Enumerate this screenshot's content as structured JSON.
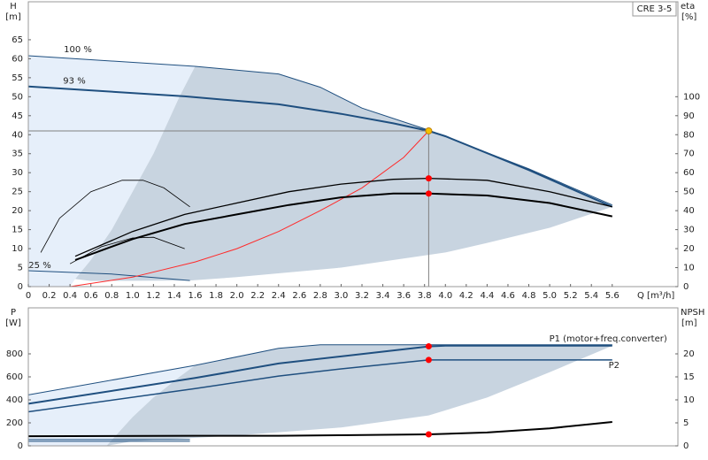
{
  "chart_data": [
    {
      "type": "line",
      "title": "CRE 3-5",
      "xlabel": "Q [m³/h]",
      "ylabel": "H",
      "yunit": "[m]",
      "y2label": "eta",
      "y2unit": "[%]",
      "xlim": [
        0,
        6.23
      ],
      "ylim": [
        0,
        75
      ],
      "y2lim": [
        0,
        150
      ],
      "xticks": [
        0,
        0.2,
        0.4,
        0.6,
        0.8,
        {
          "value": 1,
          "label": "1.0"
        },
        1.2,
        1.4,
        1.6,
        1.8,
        {
          "value": 2,
          "label": "2.0"
        },
        2.2,
        2.4,
        2.6,
        2.8,
        {
          "value": 3,
          "label": "3.0"
        },
        3.2,
        3.4,
        3.6,
        3.8,
        {
          "value": 4,
          "label": "4.0"
        },
        4.2,
        4.4,
        4.6,
        4.8,
        {
          "value": 5,
          "label": "5.0"
        },
        5.2,
        5.4,
        5.6
      ],
      "yticks": [
        0,
        5,
        10,
        15,
        20,
        25,
        30,
        35,
        40,
        45,
        50,
        55,
        60,
        65
      ],
      "y2ticks": [
        0,
        10,
        20,
        30,
        40,
        50,
        60,
        70,
        80,
        90,
        100
      ],
      "grid": false,
      "series": [
        {
          "mark": "area",
          "color": "#e6effa",
          "x": [
            0,
            0,
            1.6,
            1.45,
            1.2,
            1.0,
            0.8,
            0.6,
            0.45,
            0.4
          ],
          "values": [
            0,
            60.8,
            58,
            50,
            35,
            25,
            15,
            7,
            2,
            0
          ]
        },
        {
          "mark": "area",
          "color": "#c8d4e0",
          "x": [
            1.6,
            2.4,
            2.8,
            3.2,
            3.84,
            4.8,
            5.6,
            5.6,
            5.0,
            4.4,
            4.0,
            3.0,
            2.0,
            1.55,
            0.6,
            0.45,
            0.6,
            0.8,
            1.0,
            1.2,
            1.45
          ],
          "values": [
            58,
            56,
            52.5,
            47,
            41.2,
            31,
            21.5,
            21,
            15.5,
            11.5,
            9,
            5,
            2.5,
            1.6,
            1.5,
            2,
            7,
            15,
            25,
            35,
            50
          ]
        },
        {
          "mark": "line",
          "name": "100 %",
          "color": "#1f4f7f",
          "width": 1,
          "x": [
            0,
            1.6,
            2.4,
            2.8,
            3.2,
            3.84,
            4.8,
            5.6
          ],
          "values": [
            60.8,
            58,
            56,
            52.5,
            47,
            41.2,
            31,
            21.5
          ]
        },
        {
          "mark": "line",
          "name": "93 %",
          "color": "#1f4f7f",
          "width": 2,
          "x": [
            0,
            1.5,
            2.4,
            3.0,
            3.5,
            3.84,
            4.0,
            4.8,
            5.6
          ],
          "values": [
            52.7,
            50.1,
            48,
            45.5,
            43,
            41,
            39.6,
            30.7,
            21
          ]
        },
        {
          "mark": "line",
          "name": "25 %",
          "color": "#1f4f7f",
          "width": 1,
          "x": [
            0,
            0.8,
            1.55
          ],
          "values": [
            4.2,
            3.3,
            1.6
          ]
        },
        {
          "mark": "line",
          "color": "#808080",
          "width": 1,
          "x": [
            0,
            3.84
          ],
          "values": [
            41,
            41
          ]
        },
        {
          "mark": "line",
          "color": "#808080",
          "width": 1,
          "x": [
            3.84,
            3.84
          ],
          "values": [
            41,
            0
          ]
        },
        {
          "mark": "line",
          "color": "#ff2a2a",
          "width": 1,
          "x": [
            0.4,
            1.0,
            1.6,
            2.0,
            2.4,
            2.8,
            3.2,
            3.6,
            3.84
          ],
          "values": [
            0,
            2.5,
            6.5,
            10,
            14.5,
            20,
            26,
            34,
            41
          ]
        },
        {
          "mark": "line",
          "axis": "y2",
          "color": "#000000",
          "width": 2,
          "x": [
            0.45,
            1.0,
            1.5,
            2.0,
            2.5,
            3.0,
            3.5,
            3.84,
            4.4,
            5.0,
            5.6
          ],
          "values": [
            14,
            25,
            33,
            38,
            43,
            47,
            49,
            49,
            48,
            44,
            37
          ]
        },
        {
          "mark": "line",
          "axis": "y2",
          "color": "#000000",
          "width": 1.3,
          "x": [
            0.45,
            1.0,
            1.5,
            2.0,
            2.5,
            3.0,
            3.5,
            3.84,
            4.4,
            5.0,
            5.6
          ],
          "values": [
            16,
            29,
            38,
            44,
            50,
            54,
            56.5,
            57,
            56,
            50,
            42
          ]
        },
        {
          "mark": "line",
          "axis": "y2",
          "color": "#000000",
          "width": 0.8,
          "x": [
            0.12,
            0.3,
            0.6,
            0.9,
            1.1,
            1.3,
            1.55
          ],
          "values": [
            18,
            36,
            50,
            56,
            56,
            52,
            42
          ]
        },
        {
          "mark": "line",
          "axis": "y2",
          "color": "#000000",
          "width": 0.8,
          "x": [
            0.4,
            0.7,
            1.0,
            1.2,
            1.5
          ],
          "values": [
            12,
            21,
            25.6,
            26,
            20
          ]
        },
        {
          "mark": "dot",
          "color": "#f5c000",
          "x": [
            3.84
          ],
          "values": [
            41
          ]
        },
        {
          "mark": "dot",
          "axis": "y2",
          "color": "#ff0000",
          "x": [
            3.84
          ],
          "values": [
            57
          ]
        },
        {
          "mark": "dot",
          "axis": "y2",
          "color": "#ff0000",
          "x": [
            3.84
          ],
          "values": [
            49
          ]
        }
      ]
    },
    {
      "type": "line",
      "ylabel": "P",
      "yunit": "[W]",
      "y2label": "NPSH",
      "y2unit": "[m]",
      "xlim": [
        0,
        6.23
      ],
      "ylim": [
        0,
        1200
      ],
      "y2lim": [
        0,
        30
      ],
      "yticks": [
        0,
        200,
        400,
        600,
        800
      ],
      "y2ticks": [
        0,
        5,
        10,
        15,
        20
      ],
      "grid": false,
      "series": [
        {
          "mark": "area",
          "color": "#e6effa",
          "x": [
            0,
            0,
            1.6,
            1.45,
            1.2,
            1.0,
            0.85,
            0.75
          ],
          "values": [
            0,
            443,
            700,
            600,
            420,
            250,
            100,
            0
          ]
        },
        {
          "mark": "area",
          "color": "#c8d4e0",
          "x": [
            1.6,
            2.4,
            2.8,
            5.6,
            5.6,
            5.0,
            4.4,
            3.84,
            3.0,
            2.0,
            1.0,
            0.75,
            0.85,
            1.0,
            1.2,
            1.45
          ],
          "values": [
            700,
            848,
            879,
            879,
            870,
            640,
            420,
            265,
            160,
            90,
            40,
            0,
            100,
            250,
            420,
            600
          ]
        },
        {
          "mark": "line",
          "color": "#1f4f7f",
          "width": 1,
          "x": [
            0,
            1.6,
            2.4,
            2.8,
            3.84,
            5.6
          ],
          "values": [
            443,
            700,
            848,
            879,
            879,
            879
          ]
        },
        {
          "mark": "line",
          "name": "P1 (motor+freq.converter)",
          "color": "#1f4f7f",
          "width": 2,
          "x": [
            0,
            1.6,
            2.4,
            3.0,
            3.84,
            4.0,
            5.6
          ],
          "values": [
            366,
            590,
            716,
            778,
            865,
            871,
            871
          ]
        },
        {
          "mark": "line",
          "name": "P2",
          "color": "#1f4f7f",
          "width": 1.5,
          "x": [
            0,
            1.6,
            2.4,
            3.0,
            3.84,
            4.0,
            5.6
          ],
          "values": [
            296,
            498,
            607,
            669,
            747,
            747,
            747
          ]
        },
        {
          "mark": "line",
          "color": "#1f4f7f",
          "width": 1,
          "x": [
            0,
            1.55
          ],
          "values": [
            55,
            55
          ]
        },
        {
          "mark": "line",
          "color": "#1f4f7f",
          "width": 1,
          "x": [
            0,
            1.55
          ],
          "values": [
            39,
            39
          ]
        },
        {
          "mark": "line",
          "axis": "y2",
          "color": "#000000",
          "width": 2,
          "x": [
            0,
            1.6,
            2.4,
            3.0,
            3.84,
            4.4,
            5.0,
            5.6
          ],
          "values": [
            2.1,
            2.2,
            2.2,
            2.3,
            2.5,
            2.9,
            3.8,
            5.2
          ]
        },
        {
          "mark": "dot",
          "color": "#ff0000",
          "x": [
            3.84
          ],
          "values": [
            865
          ]
        },
        {
          "mark": "dot",
          "color": "#ff0000",
          "x": [
            3.84
          ],
          "values": [
            747
          ]
        },
        {
          "mark": "dot",
          "axis": "y2",
          "color": "#ff0000",
          "x": [
            3.84
          ],
          "values": [
            2.5
          ]
        }
      ]
    }
  ]
}
